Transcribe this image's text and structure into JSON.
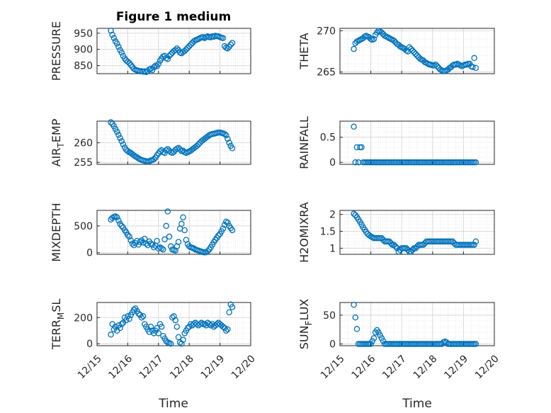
{
  "figure_title": "Figure 1 medium",
  "x_axis_label": "Time",
  "x_tick_labels": [
    "12/15",
    "12/16",
    "12/17",
    "12/18",
    "12/19",
    "12/20"
  ],
  "colors": {
    "marker": "#0072BD",
    "axes": "#262626",
    "grid": "#dcdcdc"
  },
  "chart_data": [
    {
      "type": "scatter",
      "panel": "left-1",
      "ylabel": "PRESSURE",
      "ylim": [
        825,
        965
      ],
      "yticks": [
        850,
        900,
        950
      ],
      "x": [
        15.45,
        15.5,
        15.55,
        15.6,
        15.65,
        15.7,
        15.75,
        15.8,
        15.85,
        15.9,
        15.95,
        16.0,
        16.05,
        16.1,
        16.15,
        16.2,
        16.25,
        16.3,
        16.35,
        16.4,
        16.45,
        16.5,
        16.55,
        16.6,
        16.65,
        16.7,
        16.75,
        16.8,
        16.85,
        16.9,
        16.95,
        17.0,
        17.05,
        17.1,
        17.15,
        17.2,
        17.25,
        17.3,
        17.35,
        17.4,
        17.45,
        17.5,
        17.55,
        17.6,
        17.65,
        17.7,
        17.75,
        17.8,
        17.85,
        17.9,
        17.95,
        18.0,
        18.05,
        18.1,
        18.15,
        18.2,
        18.25,
        18.3,
        18.35,
        18.4,
        18.45,
        18.5,
        18.55,
        18.6,
        18.65,
        18.7,
        18.75,
        18.8,
        18.85,
        18.9,
        18.95,
        19.0,
        19.05,
        19.1,
        19.15,
        19.2,
        19.25,
        19.3,
        19.35,
        19.4
      ],
      "y": [
        958,
        945,
        935,
        925,
        918,
        908,
        898,
        890,
        880,
        872,
        866,
        862,
        858,
        852,
        846,
        840,
        837,
        835,
        834,
        832,
        833,
        831,
        832,
        830,
        833,
        838,
        840,
        836,
        845,
        850,
        848,
        855,
        865,
        872,
        878,
        880,
        873,
        870,
        880,
        885,
        890,
        895,
        898,
        903,
        898,
        890,
        888,
        892,
        895,
        900,
        905,
        910,
        915,
        920,
        925,
        928,
        930,
        932,
        935,
        937,
        938,
        935,
        938,
        940,
        938,
        937,
        940,
        939,
        942,
        941,
        940,
        938,
        936,
        935,
        910,
        905,
        903,
        908,
        915,
        920
      ]
    },
    {
      "type": "scatter",
      "panel": "right-1",
      "ylabel": "THETA",
      "ylim": [
        264.8,
        270.3
      ],
      "yticks": [
        265,
        270
      ],
      "x": [
        15.45,
        15.5,
        15.55,
        15.6,
        15.65,
        15.7,
        15.75,
        15.8,
        15.85,
        15.9,
        15.95,
        16.0,
        16.05,
        16.1,
        16.15,
        16.2,
        16.25,
        16.3,
        16.35,
        16.4,
        16.45,
        16.5,
        16.55,
        16.6,
        16.65,
        16.7,
        16.75,
        16.8,
        16.85,
        16.9,
        16.95,
        17.0,
        17.05,
        17.1,
        17.15,
        17.2,
        17.25,
        17.3,
        17.35,
        17.4,
        17.45,
        17.5,
        17.55,
        17.6,
        17.65,
        17.7,
        17.75,
        17.8,
        17.85,
        17.9,
        17.95,
        18.0,
        18.05,
        18.1,
        18.15,
        18.2,
        18.25,
        18.3,
        18.35,
        18.4,
        18.45,
        18.5,
        18.55,
        18.6,
        18.65,
        18.7,
        18.75,
        18.8,
        18.85,
        18.9,
        18.95,
        19.0,
        19.05,
        19.1,
        19.15,
        19.2,
        19.25,
        19.3,
        19.35,
        19.4
      ],
      "y": [
        267.8,
        268.5,
        268.7,
        268.8,
        268.9,
        269.0,
        269.1,
        269.3,
        269.4,
        269.3,
        269.2,
        269.0,
        268.9,
        269.0,
        269.5,
        269.8,
        270.0,
        269.9,
        269.8,
        269.6,
        269.4,
        269.3,
        269.2,
        269.1,
        269.0,
        268.9,
        268.8,
        268.6,
        268.4,
        268.3,
        268.1,
        268.0,
        267.9,
        267.8,
        267.6,
        267.5,
        268.0,
        267.8,
        267.6,
        267.4,
        267.2,
        267.0,
        266.8,
        266.6,
        266.5,
        266.4,
        266.2,
        266.1,
        266.0,
        265.9,
        265.9,
        265.8,
        265.8,
        265.9,
        265.7,
        265.5,
        265.3,
        265.2,
        265.1,
        265.1,
        265.2,
        265.3,
        265.5,
        265.6,
        265.8,
        265.9,
        265.9,
        266.0,
        265.9,
        265.8,
        265.7,
        265.8,
        265.9,
        265.9,
        266.0,
        266.0,
        265.7,
        265.6,
        266.7,
        265.5
      ]
    },
    {
      "type": "scatter",
      "panel": "left-2",
      "ylabel": "AIR_TEMP",
      "ylim": [
        254.5,
        265.5
      ],
      "yticks": [
        255,
        260
      ],
      "x": [
        15.45,
        15.5,
        15.55,
        15.6,
        15.65,
        15.7,
        15.75,
        15.8,
        15.85,
        15.9,
        15.95,
        16.0,
        16.05,
        16.1,
        16.15,
        16.2,
        16.25,
        16.3,
        16.35,
        16.4,
        16.45,
        16.5,
        16.55,
        16.6,
        16.65,
        16.7,
        16.75,
        16.8,
        16.85,
        16.9,
        16.95,
        17.0,
        17.05,
        17.1,
        17.15,
        17.2,
        17.25,
        17.3,
        17.35,
        17.4,
        17.45,
        17.5,
        17.55,
        17.6,
        17.65,
        17.7,
        17.75,
        17.8,
        17.85,
        17.9,
        17.95,
        18.0,
        18.05,
        18.1,
        18.15,
        18.2,
        18.25,
        18.3,
        18.35,
        18.4,
        18.45,
        18.5,
        18.55,
        18.6,
        18.65,
        18.7,
        18.75,
        18.8,
        18.85,
        18.9,
        18.95,
        19.0,
        19.05,
        19.1,
        19.15,
        19.2,
        19.25,
        19.3,
        19.35,
        19.4
      ],
      "y": [
        265.2,
        264.8,
        264.2,
        263.5,
        262.8,
        262.0,
        261.2,
        260.4,
        259.6,
        258.8,
        258.2,
        257.9,
        257.6,
        257.4,
        257.1,
        256.8,
        256.5,
        256.3,
        256.0,
        255.8,
        255.6,
        255.5,
        255.4,
        255.3,
        255.2,
        255.3,
        255.5,
        255.6,
        255.8,
        256.2,
        256.8,
        257.3,
        257.8,
        258.1,
        257.6,
        257.4,
        258.1,
        258.4,
        258.0,
        257.6,
        257.4,
        257.7,
        258.2,
        258.5,
        258.7,
        258.3,
        257.9,
        258.0,
        257.6,
        257.4,
        257.6,
        257.8,
        258.0,
        258.3,
        258.6,
        258.9,
        259.2,
        259.6,
        260.0,
        260.4,
        260.7,
        261.0,
        261.3,
        261.6,
        261.9,
        262.1,
        262.2,
        262.3,
        262.4,
        262.5,
        262.6,
        262.6,
        262.5,
        262.4,
        262.2,
        261.9,
        261.0,
        260.0,
        259.2,
        258.6
      ]
    },
    {
      "type": "scatter",
      "panel": "right-2",
      "ylabel": "RAINFALL",
      "ylim": [
        -0.04,
        0.82
      ],
      "yticks": [
        0,
        0.5
      ],
      "x": [
        15.45,
        15.5,
        15.55,
        15.6,
        15.65,
        15.7,
        15.75,
        15.8,
        15.85,
        15.9,
        15.95,
        16.0,
        16.05,
        16.1,
        16.15,
        16.2,
        16.25,
        16.3,
        16.35,
        16.4,
        16.45,
        16.5,
        16.55,
        16.6,
        16.65,
        16.7,
        16.75,
        16.8,
        16.85,
        16.9,
        16.95,
        17.0,
        17.05,
        17.1,
        17.15,
        17.2,
        17.25,
        17.3,
        17.35,
        17.4,
        17.45,
        17.5,
        17.55,
        17.6,
        17.65,
        17.7,
        17.75,
        17.8,
        17.85,
        17.9,
        17.95,
        18.0,
        18.05,
        18.1,
        18.15,
        18.2,
        18.25,
        18.3,
        18.35,
        18.4,
        18.45,
        18.5,
        18.55,
        18.6,
        18.65,
        18.7,
        18.75,
        18.8,
        18.85,
        18.9,
        18.95,
        19.0,
        19.05,
        19.1,
        19.15,
        19.2,
        19.25,
        19.3,
        19.35,
        19.4
      ],
      "y": [
        0.71,
        0,
        0.3,
        0,
        0.3,
        0.3,
        0,
        0,
        0,
        0,
        0,
        0,
        0,
        0,
        0,
        0,
        0,
        0,
        0,
        0,
        0,
        0,
        0,
        0,
        0,
        0,
        0,
        0,
        0,
        0,
        0,
        0,
        0,
        0,
        0,
        0,
        0,
        0,
        0,
        0,
        0,
        0,
        0,
        0,
        0,
        0,
        0,
        0,
        0,
        0,
        0,
        0,
        0,
        0,
        0,
        0,
        0,
        0,
        0,
        0,
        0,
        0,
        0,
        0,
        0,
        0,
        0,
        0,
        0,
        0,
        0,
        0,
        0,
        0,
        0,
        0,
        0,
        0,
        0,
        0
      ]
    },
    {
      "type": "scatter",
      "panel": "left-3",
      "ylabel": "MIXDEPTH",
      "ylim": [
        -30,
        790
      ],
      "yticks": [
        0,
        500
      ],
      "x": [
        15.45,
        15.5,
        15.55,
        15.6,
        15.65,
        15.7,
        15.75,
        15.8,
        15.85,
        15.9,
        15.95,
        16.0,
        16.05,
        16.1,
        16.15,
        16.2,
        16.25,
        16.3,
        16.35,
        16.4,
        16.45,
        16.5,
        16.55,
        16.6,
        16.65,
        16.7,
        16.75,
        16.8,
        16.85,
        16.9,
        16.95,
        17.0,
        17.05,
        17.1,
        17.15,
        17.2,
        17.25,
        17.3,
        17.35,
        17.4,
        17.45,
        17.5,
        17.55,
        17.6,
        17.65,
        17.7,
        17.75,
        17.8,
        17.85,
        17.9,
        17.95,
        18.0,
        18.05,
        18.1,
        18.15,
        18.2,
        18.25,
        18.3,
        18.35,
        18.4,
        18.45,
        18.5,
        18.55,
        18.6,
        18.65,
        18.7,
        18.75,
        18.8,
        18.85,
        18.9,
        18.95,
        19.0,
        19.05,
        19.1,
        19.15,
        19.2,
        19.25,
        19.3,
        19.35,
        19.4
      ],
      "y": [
        620,
        650,
        670,
        680,
        660,
        600,
        540,
        500,
        470,
        420,
        380,
        330,
        300,
        230,
        170,
        140,
        180,
        220,
        150,
        200,
        230,
        190,
        260,
        170,
        140,
        210,
        170,
        150,
        100,
        130,
        220,
        80,
        100,
        80,
        60,
        250,
        500,
        770,
        300,
        120,
        60,
        50,
        40,
        120,
        200,
        450,
        540,
        660,
        420,
        240,
        160,
        120,
        100,
        90,
        80,
        60,
        50,
        40,
        30,
        20,
        10,
        5,
        10,
        30,
        60,
        100,
        150,
        200,
        240,
        280,
        320,
        350,
        400,
        450,
        520,
        580,
        560,
        500,
        460,
        420
      ]
    },
    {
      "type": "scatter",
      "panel": "right-3",
      "ylabel": "H2OMIXRA",
      "ylim": [
        0.82,
        2.12
      ],
      "yticks": [
        1,
        1.5,
        2
      ],
      "x": [
        15.45,
        15.5,
        15.55,
        15.6,
        15.65,
        15.7,
        15.75,
        15.8,
        15.85,
        15.9,
        15.95,
        16.0,
        16.05,
        16.1,
        16.15,
        16.2,
        16.25,
        16.3,
        16.35,
        16.4,
        16.45,
        16.5,
        16.55,
        16.6,
        16.65,
        16.7,
        16.75,
        16.8,
        16.85,
        16.9,
        16.95,
        17.0,
        17.05,
        17.1,
        17.15,
        17.2,
        17.25,
        17.3,
        17.35,
        17.4,
        17.45,
        17.5,
        17.55,
        17.6,
        17.65,
        17.7,
        17.75,
        17.8,
        17.85,
        17.9,
        17.95,
        18.0,
        18.05,
        18.1,
        18.15,
        18.2,
        18.25,
        18.3,
        18.35,
        18.4,
        18.45,
        18.5,
        18.55,
        18.6,
        18.65,
        18.7,
        18.75,
        18.8,
        18.85,
        18.9,
        18.95,
        19.0,
        19.05,
        19.1,
        19.15,
        19.2,
        19.25,
        19.3,
        19.35,
        19.4
      ],
      "y": [
        2.02,
        1.98,
        1.92,
        1.85,
        1.78,
        1.7,
        1.62,
        1.55,
        1.48,
        1.42,
        1.38,
        1.35,
        1.32,
        1.3,
        1.3,
        1.3,
        1.3,
        1.3,
        1.3,
        1.25,
        1.2,
        1.2,
        1.2,
        1.2,
        1.15,
        1.1,
        1.1,
        1.05,
        1.0,
        0.9,
        0.95,
        1.0,
        1.0,
        1.0,
        1.0,
        0.95,
        0.9,
        0.9,
        0.95,
        1.0,
        1.0,
        1.05,
        1.1,
        1.1,
        1.1,
        1.1,
        1.15,
        1.2,
        1.2,
        1.2,
        1.2,
        1.2,
        1.2,
        1.2,
        1.2,
        1.2,
        1.2,
        1.2,
        1.2,
        1.2,
        1.2,
        1.2,
        1.2,
        1.2,
        1.2,
        1.15,
        1.1,
        1.1,
        1.1,
        1.1,
        1.1,
        1.1,
        1.1,
        1.1,
        1.1,
        1.1,
        1.1,
        1.1,
        1.1,
        1.2
      ]
    },
    {
      "type": "scatter",
      "panel": "left-4",
      "ylabel": "TERR_MSL",
      "ylim": [
        -15,
        315
      ],
      "yticks": [
        0,
        200
      ],
      "x": [
        15.45,
        15.5,
        15.55,
        15.6,
        15.65,
        15.7,
        15.75,
        15.8,
        15.85,
        15.9,
        15.95,
        16.0,
        16.05,
        16.1,
        16.15,
        16.2,
        16.25,
        16.3,
        16.35,
        16.4,
        16.45,
        16.5,
        16.55,
        16.6,
        16.65,
        16.7,
        16.75,
        16.8,
        16.85,
        16.9,
        16.95,
        17.0,
        17.05,
        17.1,
        17.15,
        17.2,
        17.25,
        17.3,
        17.35,
        17.4,
        17.45,
        17.5,
        17.55,
        17.6,
        17.65,
        17.7,
        17.75,
        17.8,
        17.85,
        17.9,
        17.95,
        18.0,
        18.05,
        18.1,
        18.15,
        18.2,
        18.25,
        18.3,
        18.35,
        18.4,
        18.45,
        18.5,
        18.55,
        18.6,
        18.65,
        18.7,
        18.75,
        18.8,
        18.85,
        18.9,
        18.95,
        19.0,
        19.05,
        19.1,
        19.15,
        19.2,
        19.25,
        19.3,
        19.35,
        19.4
      ],
      "y": [
        70,
        150,
        110,
        130,
        100,
        140,
        120,
        150,
        160,
        200,
        180,
        210,
        190,
        220,
        240,
        260,
        270,
        250,
        230,
        220,
        200,
        210,
        150,
        130,
        110,
        90,
        130,
        100,
        80,
        100,
        120,
        80,
        150,
        130,
        60,
        40,
        20,
        10,
        5,
        0,
        200,
        210,
        180,
        130,
        50,
        10,
        0,
        30,
        80,
        100,
        120,
        130,
        150,
        140,
        150,
        160,
        150,
        140,
        150,
        160,
        150,
        150,
        140,
        160,
        150,
        140,
        150,
        130,
        140,
        150,
        160,
        150,
        140,
        130,
        120,
        100,
        110,
        240,
        300,
        280
      ]
    },
    {
      "type": "scatter",
      "panel": "right-4",
      "ylabel": "SUN_FLUX",
      "ylim": [
        -3,
        72
      ],
      "yticks": [
        0,
        50
      ],
      "x": [
        15.45,
        15.5,
        15.55,
        15.6,
        15.65,
        15.7,
        15.75,
        15.8,
        15.85,
        15.9,
        15.95,
        16.0,
        16.05,
        16.1,
        16.15,
        16.2,
        16.25,
        16.3,
        16.35,
        16.4,
        16.45,
        16.5,
        16.55,
        16.6,
        16.65,
        16.7,
        16.75,
        16.8,
        16.85,
        16.9,
        16.95,
        17.0,
        17.05,
        17.1,
        17.15,
        17.2,
        17.25,
        17.3,
        17.35,
        17.4,
        17.45,
        17.5,
        17.55,
        17.6,
        17.65,
        17.7,
        17.75,
        17.8,
        17.85,
        17.9,
        17.95,
        18.0,
        18.05,
        18.1,
        18.15,
        18.2,
        18.25,
        18.3,
        18.35,
        18.4,
        18.45,
        18.5,
        18.55,
        18.6,
        18.65,
        18.7,
        18.75,
        18.8,
        18.85,
        18.9,
        18.95,
        19.0,
        19.05,
        19.1,
        19.15,
        19.2,
        19.25,
        19.3,
        19.35,
        19.4
      ],
      "y": [
        68,
        46,
        26,
        0,
        0,
        0,
        0,
        0,
        0,
        0,
        0,
        0,
        5,
        10,
        20,
        24,
        20,
        15,
        10,
        5,
        0,
        0,
        0,
        0,
        0,
        0,
        0,
        0,
        0,
        0,
        0,
        0,
        0,
        0,
        0,
        0,
        0,
        0,
        0,
        0,
        0,
        0,
        0,
        0,
        0,
        0,
        0,
        0,
        0,
        0,
        0,
        0,
        0,
        0,
        0,
        0,
        0,
        0,
        3,
        4,
        3,
        0,
        0,
        0,
        0,
        0,
        0,
        0,
        0,
        0,
        0,
        0,
        0,
        0,
        0,
        0,
        0,
        0,
        0,
        0
      ]
    }
  ]
}
